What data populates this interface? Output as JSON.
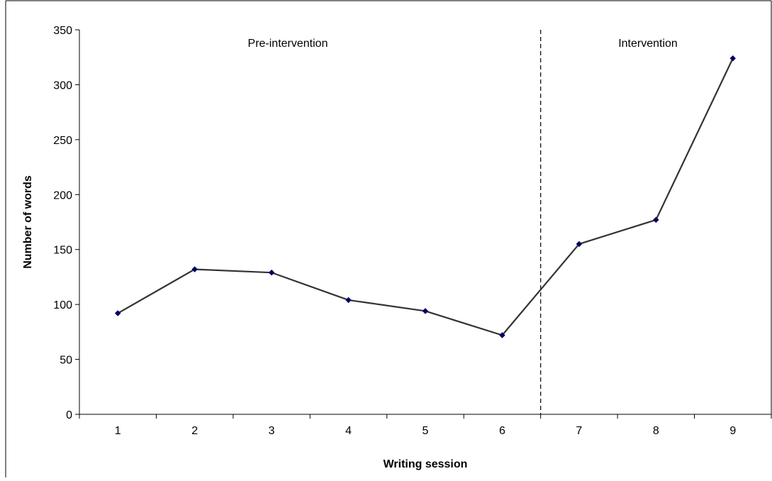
{
  "chart_data": {
    "type": "line",
    "title": "",
    "xlabel": "Writing session",
    "ylabel": "Number of words",
    "categories": [
      "1",
      "2",
      "3",
      "4",
      "5",
      "6",
      "7",
      "8",
      "9"
    ],
    "series": [
      {
        "values": [
          92,
          132,
          129,
          104,
          94,
          72,
          155,
          177,
          324
        ],
        "color": "#333333",
        "marker_color": "#000066"
      }
    ],
    "ylim": [
      0,
      350
    ],
    "yticks": [
      0,
      50,
      100,
      150,
      200,
      250,
      300,
      350
    ],
    "grid": false,
    "legend": "none",
    "phase_divider": {
      "between_categories": [
        "6",
        "7"
      ],
      "style": "dashed"
    },
    "annotations": [
      {
        "text": "Pre-intervention",
        "phase": "pre"
      },
      {
        "text": "Intervention",
        "phase": "intervention"
      }
    ]
  }
}
